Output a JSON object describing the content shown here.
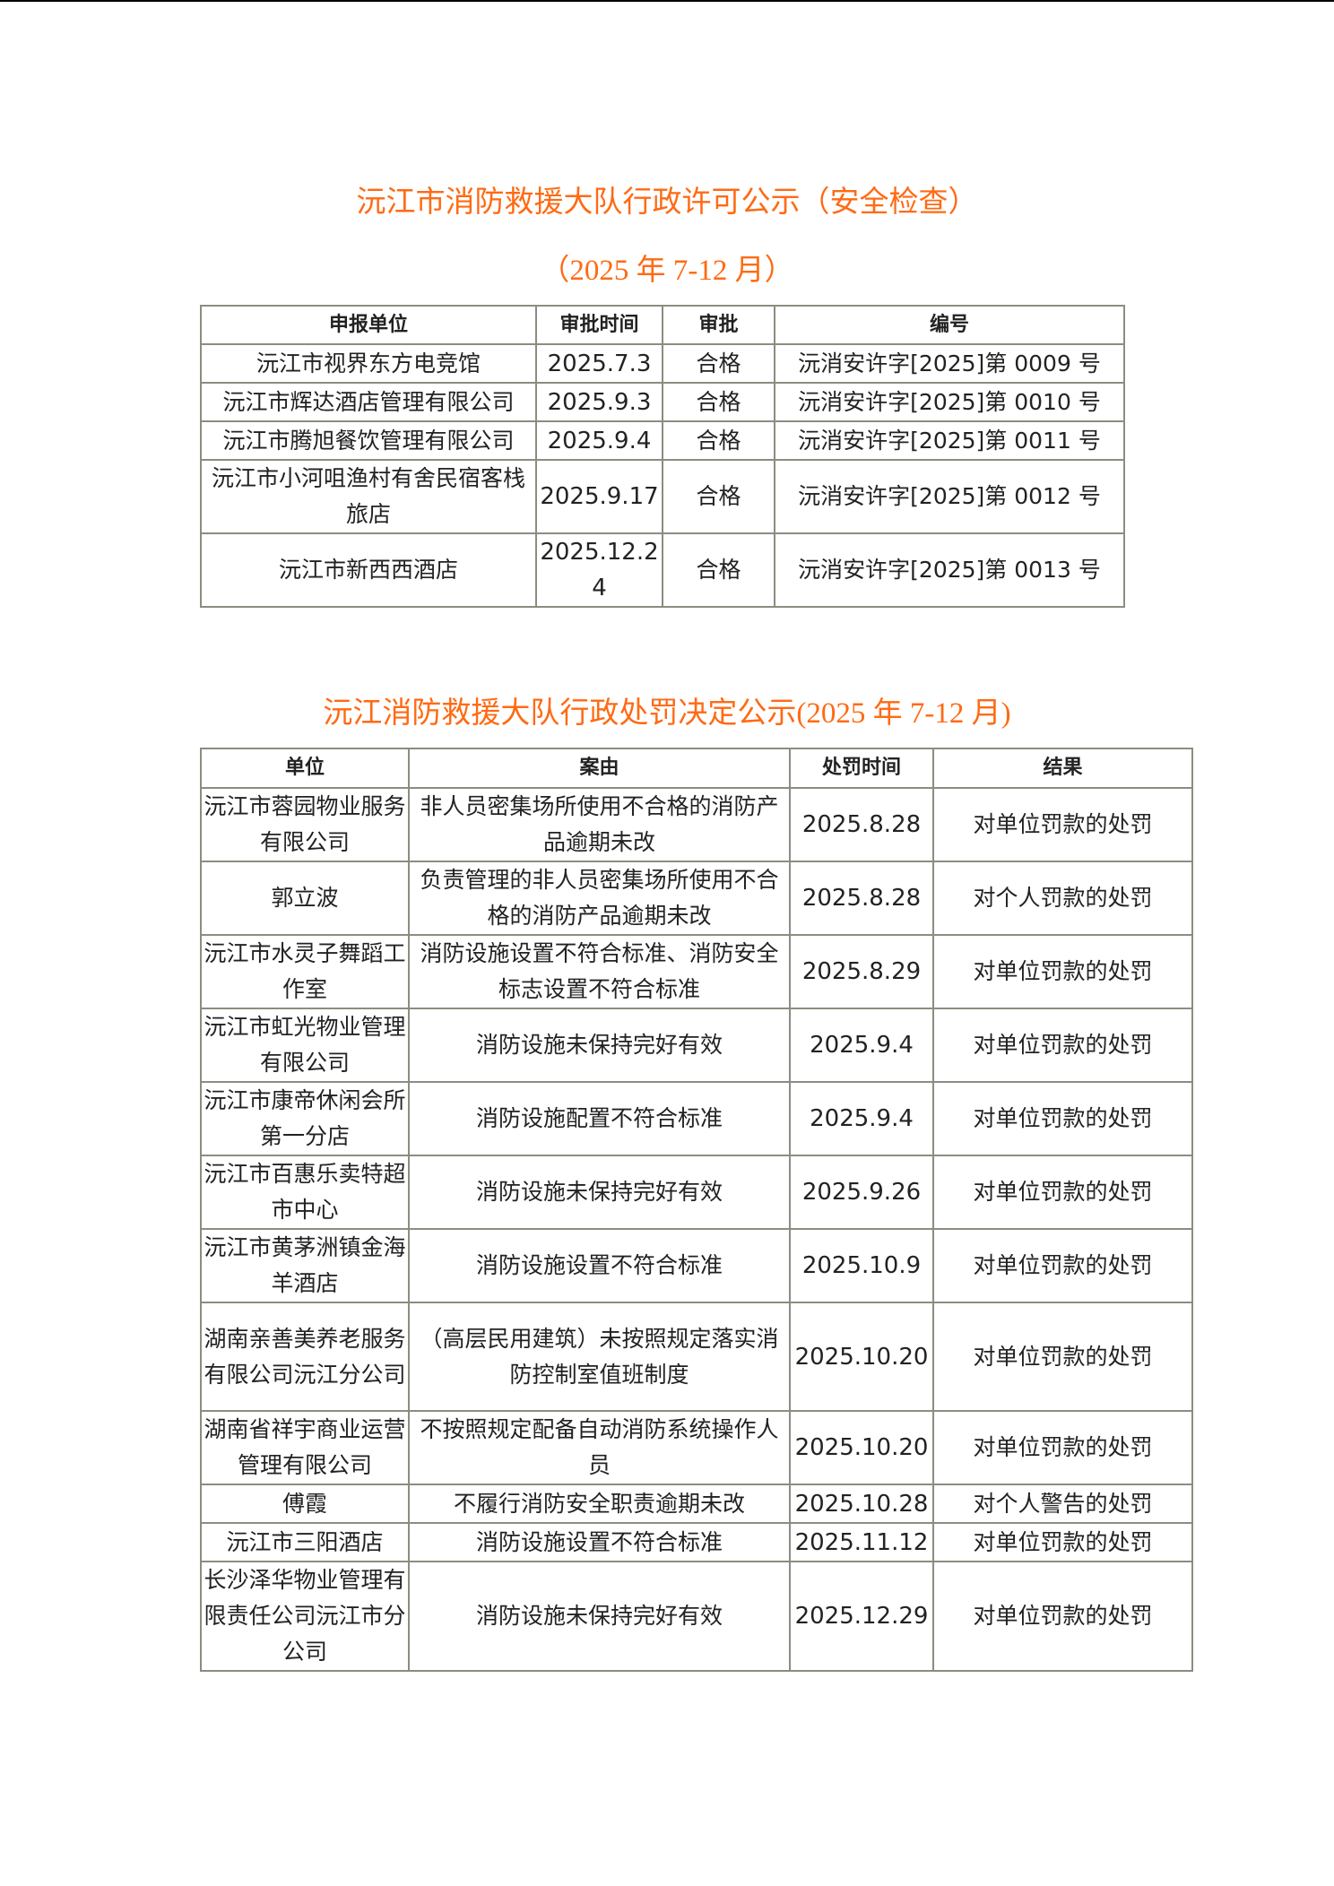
{
  "permit": {
    "title": "沅江市消防救援大队行政许可公示（安全检查）",
    "subtitle": "（2025 年 7-12 月）",
    "headers": [
      "申报单位",
      "审批时间",
      "审批",
      "编号"
    ],
    "rows": [
      [
        "沅江市视界东方电竞馆",
        "2025.7.3",
        "合格",
        "沅消安许字[2025]第 0009 号"
      ],
      [
        "沅江市辉达酒店管理有限公司",
        "2025.9.3",
        "合格",
        "沅消安许字[2025]第 0010 号"
      ],
      [
        "沅江市腾旭餐饮管理有限公司",
        "2025.9.4",
        "合格",
        "沅消安许字[2025]第 0011 号"
      ],
      [
        "沅江市小河咀渔村有舍民宿客栈旅店",
        "2025.9.17",
        "合格",
        "沅消安许字[2025]第 0012 号"
      ],
      [
        "沅江市新西西酒店",
        "2025.12.24",
        "合格",
        "沅消安许字[2025]第 0013 号"
      ]
    ]
  },
  "penalty": {
    "title": "沅江消防救援大队行政处罚决定公示(2025 年 7-12 月)",
    "headers": [
      "单位",
      "案由",
      "处罚时间",
      "结果"
    ],
    "rows": [
      [
        "沅江市蓉园物业服务有限公司",
        "非人员密集场所使用不合格的消防产品逾期未改",
        "2025.8.28",
        "对单位罚款的处罚"
      ],
      [
        "郭立波",
        "负责管理的非人员密集场所使用不合格的消防产品逾期未改",
        "2025.8.28",
        "对个人罚款的处罚"
      ],
      [
        "沅江市水灵子舞蹈工作室",
        "消防设施设置不符合标准、消防安全标志设置不符合标准",
        "2025.8.29",
        "对单位罚款的处罚"
      ],
      [
        "沅江市虹光物业管理有限公司",
        "消防设施未保持完好有效",
        "2025.9.4",
        "对单位罚款的处罚"
      ],
      [
        "沅江市康帝休闲会所第一分店",
        "消防设施配置不符合标准",
        "2025.9.4",
        "对单位罚款的处罚"
      ],
      [
        "沅江市百惠乐卖特超市中心",
        "消防设施未保持完好有效",
        "2025.9.26",
        "对单位罚款的处罚"
      ],
      [
        "沅江市黄茅洲镇金海羊酒店",
        "消防设施设置不符合标准",
        "2025.10.9",
        "对单位罚款的处罚"
      ],
      [
        "湖南亲善美养老服务有限公司沅江分公司",
        "（高层民用建筑）未按照规定落实消防控制室值班制度",
        "2025.10.20",
        "对单位罚款的处罚"
      ],
      [
        "湖南省祥宇商业运营管理有限公司",
        "不按照规定配备自动消防系统操作人员",
        "2025.10.20",
        "对单位罚款的处罚"
      ],
      [
        "傅霞",
        "不履行消防安全职责逾期未改",
        "2025.10.28",
        "对个人警告的处罚"
      ],
      [
        "沅江市三阳酒店",
        "消防设施设置不符合标准",
        "2025.11.12",
        "对单位罚款的处罚"
      ],
      [
        "长沙泽华物业管理有限责任公司沅江市分公司",
        "消防设施未保持完好有效",
        "2025.12.29",
        "对单位罚款的处罚"
      ]
    ]
  },
  "colors": {
    "title": "#ff6a13",
    "border": "#8c8c80"
  }
}
